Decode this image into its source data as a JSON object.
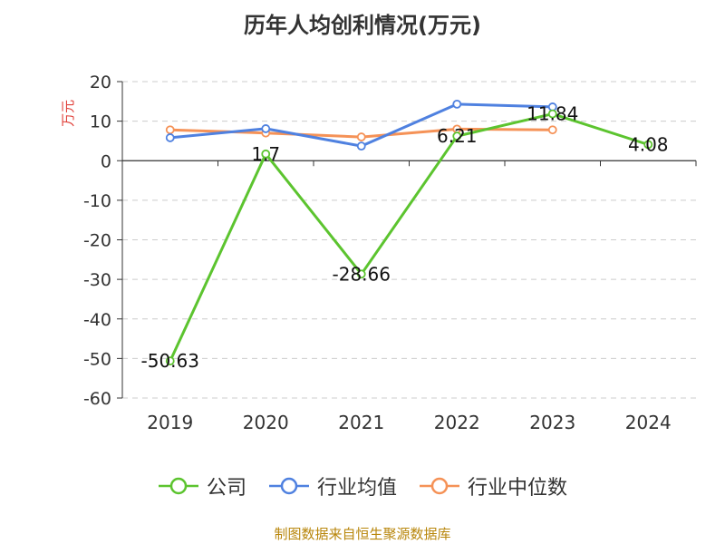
{
  "chart_data": {
    "type": "line",
    "title": "历年人均创利情况(万元)",
    "ylabel": "万元",
    "xlabel": "",
    "categories": [
      "2019",
      "2020",
      "2021",
      "2022",
      "2023",
      "2024"
    ],
    "ylim": [
      -60,
      20
    ],
    "yticks": [
      20,
      10,
      0,
      -10,
      -20,
      -30,
      -40,
      -50,
      -60
    ],
    "grid": true,
    "legend_position": "bottom",
    "series": [
      {
        "name": "公司",
        "color": "#5cc42f",
        "values": [
          -50.63,
          1.7,
          -28.66,
          6.21,
          11.84,
          4.08
        ],
        "labels": [
          "-50.63",
          "1.7",
          "-28.66",
          "6.21",
          "11.84",
          "4.08"
        ]
      },
      {
        "name": "行业均值",
        "color": "#4f81e0",
        "values": [
          5.8,
          8.1,
          3.7,
          14.3,
          13.6,
          null
        ]
      },
      {
        "name": "行业中位数",
        "color": "#f59257",
        "values": [
          7.8,
          7.0,
          6.0,
          8.0,
          7.8,
          null
        ]
      }
    ]
  },
  "footer": "制图数据来自恒生聚源数据库"
}
